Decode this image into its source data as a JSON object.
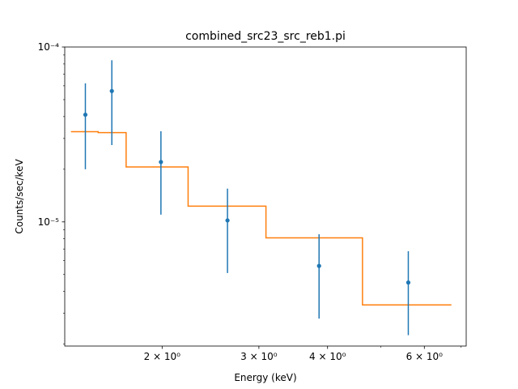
{
  "chart_data": {
    "type": "scatter",
    "title": "combined_src23_src_reb1.pi",
    "xlabel": "Energy (keV)",
    "ylabel": "Counts/sec/keV",
    "xscale": "log",
    "yscale": "log",
    "xlim": [
      1.33,
      7.15
    ],
    "ylim": [
      1.95e-06,
      0.0001
    ],
    "grid": false,
    "x_ticks": [
      {
        "value": 2,
        "label": "2 × 10⁰"
      },
      {
        "value": 3,
        "label": "3 × 10⁰"
      },
      {
        "value": 4,
        "label": "4 × 10⁰"
      },
      {
        "value": 6,
        "label": "6 × 10⁰"
      }
    ],
    "x_minor_ticks": [
      5,
      7
    ],
    "y_ticks": [
      {
        "value": 1e-05,
        "label": "10⁻⁵"
      },
      {
        "value": 0.0001,
        "label": "10⁻⁴"
      }
    ],
    "y_minor_ticks": [
      2e-06,
      3e-06,
      4e-06,
      5e-06,
      6e-06,
      7e-06,
      8e-06,
      9e-06,
      2e-05,
      3e-05,
      4e-05,
      5e-05,
      6e-05,
      7e-05,
      8e-05,
      9e-05
    ],
    "series": [
      {
        "kind": "errorbar",
        "color": "#1f77b4",
        "x": [
          1.45,
          1.62,
          1.99,
          2.63,
          3.86,
          5.61
        ],
        "y": [
          4.1e-05,
          5.6e-05,
          2.2e-05,
          1.02e-05,
          5.6e-06,
          4.5e-06
        ],
        "ylow": [
          2e-05,
          2.75e-05,
          1.1e-05,
          5.1e-06,
          2.8e-06,
          2.25e-06
        ],
        "yhigh": [
          6.2e-05,
          8.4e-05,
          3.3e-05,
          1.55e-05,
          8.5e-06,
          6.8e-06
        ]
      },
      {
        "kind": "step",
        "color": "#ff7f0e",
        "segments": [
          {
            "x0": 1.365,
            "x1": 1.53,
            "y": 3.28e-05
          },
          {
            "x0": 1.53,
            "x1": 1.72,
            "y": 3.24e-05
          },
          {
            "x0": 1.72,
            "x1": 2.23,
            "y": 2.06e-05
          },
          {
            "x0": 2.23,
            "x1": 3.09,
            "y": 1.23e-05
          },
          {
            "x0": 3.09,
            "x1": 4.63,
            "y": 8.1e-06
          },
          {
            "x0": 4.63,
            "x1": 6.72,
            "y": 3.35e-06
          }
        ]
      }
    ]
  }
}
